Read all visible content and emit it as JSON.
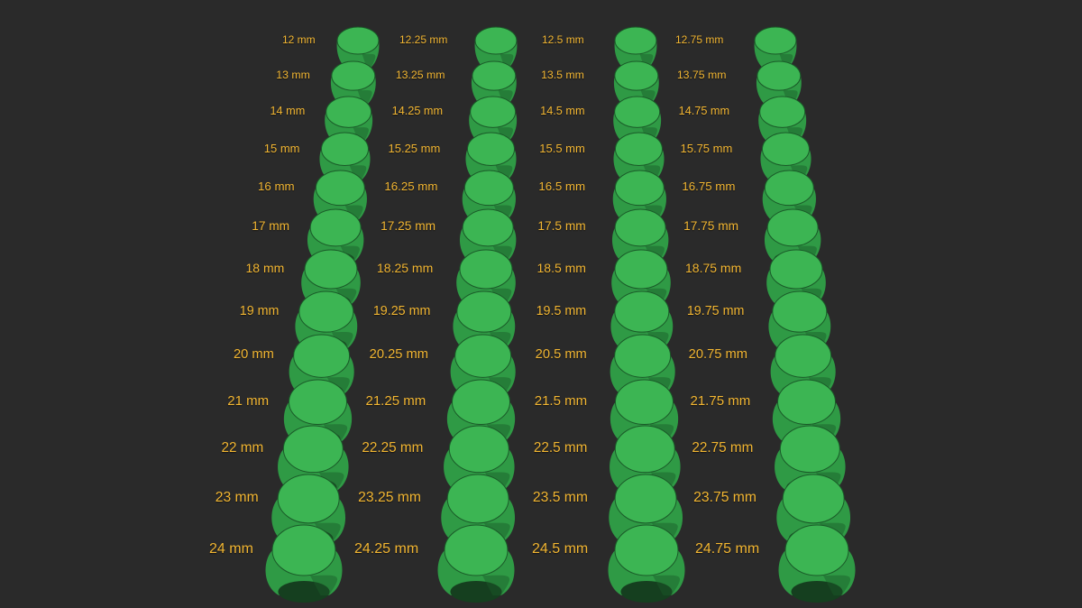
{
  "colors": {
    "background": "#2a2a2a",
    "label": "#f2b632",
    "ring_body": "#2f9a45",
    "ring_top": "#3cb553",
    "ring_shadow": "#1a5a28",
    "ring_inner": "#153f1f"
  },
  "columns": [
    {
      "sizes": [
        "12 mm",
        "13 mm",
        "14 mm",
        "15 mm",
        "16 mm",
        "17 mm",
        "18 mm",
        "19 mm",
        "20 mm",
        "21 mm",
        "22 mm",
        "23 mm",
        "24 mm"
      ]
    },
    {
      "sizes": [
        "12.25 mm",
        "13.25 mm",
        "14.25 mm",
        "15.25 mm",
        "16.25 mm",
        "17.25 mm",
        "18.25 mm",
        "19.25 mm",
        "20.25 mm",
        "21.25 mm",
        "22.25 mm",
        "23.25 mm",
        "24.25 mm"
      ]
    },
    {
      "sizes": [
        "12.5 mm",
        "13.5 mm",
        "14.5 mm",
        "15.5 mm",
        "16.5 mm",
        "17.5 mm",
        "18.5 mm",
        "19.5 mm",
        "20.5 mm",
        "21.5 mm",
        "22.5 mm",
        "23.5 mm",
        "24.5 mm"
      ]
    },
    {
      "sizes": [
        "12.75 mm",
        "13.75 mm",
        "14.75 mm",
        "15.75 mm",
        "16.75 mm",
        "17.75 mm",
        "18.75 mm",
        "19.75 mm",
        "20.75 mm",
        "21.75 mm",
        "22.75 mm",
        "23.75 mm",
        "24.75 mm"
      ]
    }
  ]
}
